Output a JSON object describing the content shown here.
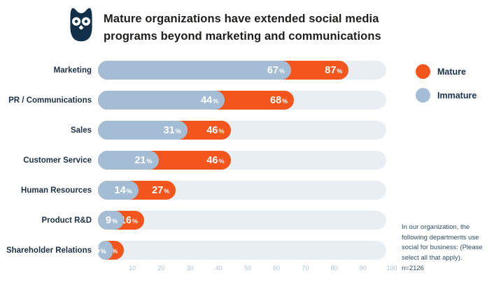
{
  "header": {
    "title_line1": "Mature organizations have extended social media",
    "title_line2": "programs beyond marketing and communications"
  },
  "logo": {
    "icon": "hootsuite-owl",
    "color": "#12304a"
  },
  "legend": [
    {
      "label": "Mature",
      "color": "#F4551C"
    },
    {
      "label": "Immature",
      "color": "#A4BDD5"
    }
  ],
  "note": {
    "text": "In our organization, the following departments use social for business: (Please select all that apply).",
    "sample": "n=2126"
  },
  "chart_data": {
    "type": "bar",
    "orientation": "horizontal",
    "title": "Mature organizations have extended social media programs beyond marketing and communications",
    "categories": [
      "Marketing",
      "PR / Communications",
      "Sales",
      "Customer Service",
      "Human Resources",
      "Product R&D",
      "Shareholder Relations"
    ],
    "series": [
      {
        "name": "Mature",
        "color": "#F4551C",
        "values": [
          87,
          68,
          46,
          46,
          27,
          16,
          9
        ]
      },
      {
        "name": "Immature",
        "color": "#A4BDD5",
        "values": [
          67,
          44,
          31,
          21,
          14,
          9,
          5
        ]
      }
    ],
    "xlim": [
      0,
      100
    ],
    "x_ticks": [
      10,
      20,
      30,
      40,
      50,
      60,
      70,
      80,
      90,
      100
    ],
    "track_color": "#E9EEF3",
    "value_suffix": "%",
    "legend_position": "right",
    "grid": false,
    "note": "In our organization, the following departments use social for business: (Please select all that apply). n=2126"
  }
}
